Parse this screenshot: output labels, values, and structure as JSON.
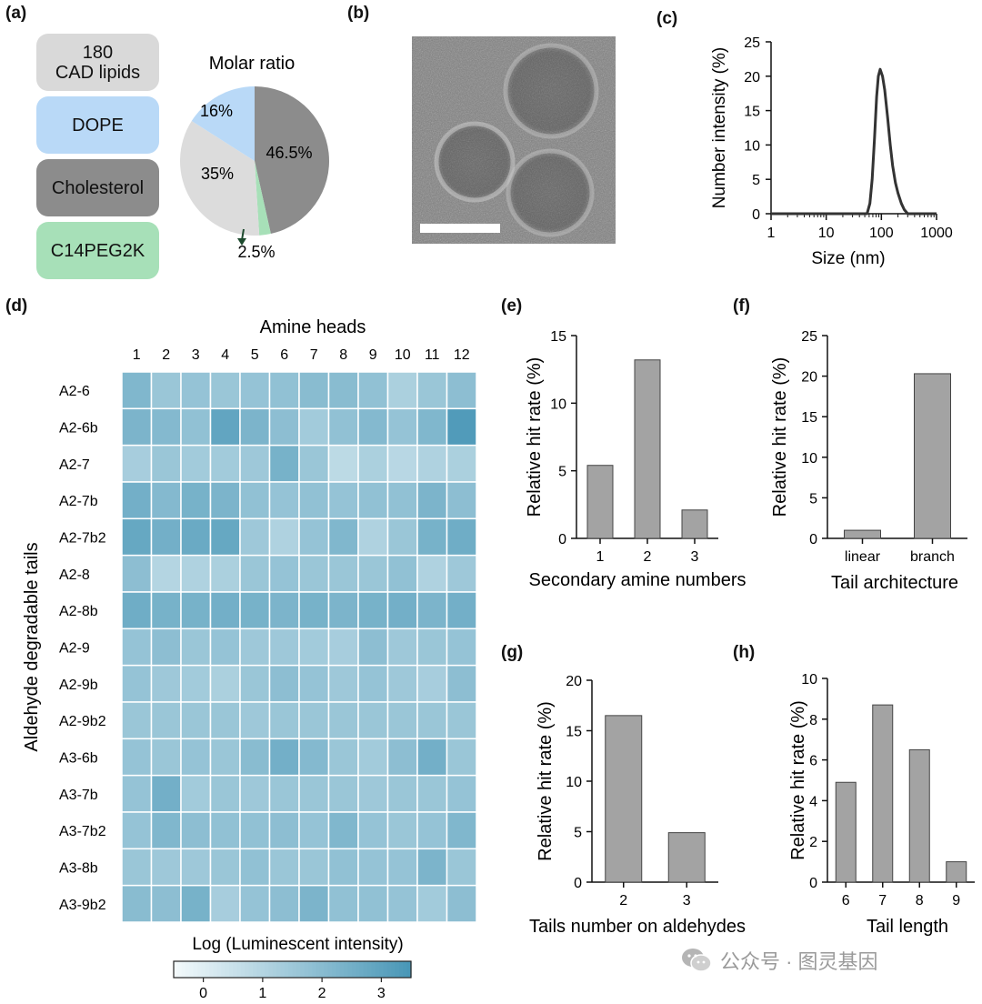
{
  "panels": {
    "a": "(a)",
    "b": "(b)",
    "c": "(c)",
    "d": "(d)",
    "e": "(e)",
    "f": "(f)",
    "g": "(g)",
    "h": "(h)"
  },
  "formulation": {
    "title": "Molar ratio",
    "components": [
      {
        "lines": [
          "180",
          "CAD lipids"
        ],
        "color": "#d9d9d9"
      },
      {
        "lines": [
          "DOPE"
        ],
        "color": "#b9d9f7"
      },
      {
        "lines": [
          "Cholesterol"
        ],
        "color": "#8c8c8c"
      },
      {
        "lines": [
          "C14PEG2K"
        ],
        "color": "#a7e0b8"
      }
    ]
  },
  "watermark": {
    "text": "公众号 · 图灵基因",
    "icon": "wechat-icon"
  },
  "chart_data": [
    {
      "id": "a",
      "type": "pie",
      "title": "Molar ratio",
      "slices": [
        {
          "label": "46.5%",
          "value": 46.5,
          "color": "#8c8c8c"
        },
        {
          "label": "2.5%",
          "value": 2.5,
          "color": "#a7e0b8"
        },
        {
          "label": "35%",
          "value": 35,
          "color": "#dcdcdc"
        },
        {
          "label": "16%",
          "value": 16,
          "color": "#b9d9f7"
        }
      ]
    },
    {
      "id": "c",
      "type": "line",
      "xlabel": "Size (nm)",
      "ylabel": "Number intensity (%)",
      "xscale": "log",
      "xlim": [
        1,
        1000
      ],
      "ylim": [
        0,
        25
      ],
      "xticks": [
        1,
        10,
        100,
        1000
      ],
      "xticklabels": [
        "1",
        "10",
        "100",
        "1000"
      ],
      "yticks": [
        0,
        5,
        10,
        15,
        20,
        25
      ],
      "yticklabels": [
        "0",
        "5",
        "10",
        "15",
        "20",
        "25"
      ],
      "x": [
        1,
        40,
        55,
        62,
        68,
        75,
        82,
        88,
        95,
        105,
        115,
        130,
        145,
        160,
        180,
        200,
        230,
        260,
        300,
        400,
        1000
      ],
      "y": [
        0,
        0,
        0,
        1.5,
        5,
        11,
        17,
        20,
        21,
        20,
        18,
        14,
        10,
        7,
        4.5,
        3,
        1.5,
        0.6,
        0,
        0,
        0
      ]
    },
    {
      "id": "d",
      "type": "heatmap",
      "title": "Amine heads",
      "ylabel": "Aldehyde degradable tails",
      "colorbar_label": "Log (Luminescent intensity)",
      "colorbar_range": [
        -0.5,
        3.5
      ],
      "colorbar_ticks": [
        0,
        1,
        2,
        3
      ],
      "columns": [
        "1",
        "2",
        "3",
        "4",
        "5",
        "6",
        "7",
        "8",
        "9",
        "10",
        "11",
        "12"
      ],
      "rows": [
        "A2-6",
        "A2-6b",
        "A2-7",
        "A2-7b",
        "A2-7b2",
        "A2-8",
        "A2-8b",
        "A2-9",
        "A2-9b",
        "A2-9b2",
        "A3-6b",
        "A3-7b",
        "A3-7b2",
        "A3-8b",
        "A3-9b2"
      ],
      "values": [
        [
          2.2,
          1.6,
          1.7,
          1.6,
          1.7,
          1.8,
          2.0,
          2.0,
          1.8,
          1.2,
          1.6,
          1.9
        ],
        [
          2.3,
          2.1,
          1.8,
          2.9,
          2.3,
          1.9,
          1.4,
          1.8,
          2.1,
          1.7,
          2.2,
          3.3
        ],
        [
          1.3,
          1.6,
          1.4,
          1.4,
          1.5,
          2.4,
          1.6,
          0.8,
          1.2,
          0.9,
          1.1,
          1.2
        ],
        [
          2.5,
          2.1,
          2.4,
          2.3,
          1.8,
          1.7,
          1.8,
          1.7,
          1.8,
          1.8,
          2.3,
          1.9
        ],
        [
          2.8,
          2.5,
          2.7,
          2.8,
          1.5,
          1.1,
          1.7,
          2.2,
          1.1,
          1.6,
          2.4,
          2.6
        ],
        [
          1.9,
          1.0,
          1.1,
          1.2,
          1.6,
          1.7,
          1.6,
          1.6,
          1.6,
          1.8,
          1.1,
          1.5
        ],
        [
          2.6,
          2.4,
          2.4,
          2.5,
          2.4,
          2.3,
          2.4,
          2.3,
          2.4,
          2.5,
          2.3,
          2.5
        ],
        [
          1.7,
          1.9,
          1.6,
          1.7,
          1.5,
          1.5,
          1.4,
          1.3,
          1.9,
          1.5,
          1.6,
          1.7
        ],
        [
          1.7,
          1.5,
          1.4,
          1.2,
          1.6,
          1.9,
          1.7,
          1.5,
          1.7,
          1.5,
          1.3,
          1.9
        ],
        [
          1.6,
          1.6,
          1.6,
          1.6,
          1.5,
          1.6,
          1.6,
          1.6,
          1.6,
          1.6,
          1.6,
          1.6
        ],
        [
          1.7,
          1.6,
          1.7,
          1.6,
          2.0,
          2.5,
          2.1,
          1.6,
          1.4,
          1.9,
          2.5,
          1.6
        ],
        [
          1.7,
          2.5,
          1.4,
          1.6,
          1.5,
          1.6,
          1.6,
          1.6,
          1.5,
          1.6,
          1.6,
          1.7
        ],
        [
          1.7,
          2.2,
          1.9,
          1.8,
          1.8,
          1.9,
          1.7,
          2.2,
          1.7,
          1.6,
          1.7,
          2.2
        ],
        [
          1.6,
          1.5,
          1.5,
          1.6,
          1.8,
          1.6,
          1.6,
          1.8,
          1.7,
          1.7,
          2.3,
          1.6
        ],
        [
          2.0,
          1.9,
          2.4,
          1.3,
          1.7,
          1.9,
          2.3,
          1.8,
          1.8,
          1.7,
          1.4,
          1.9
        ]
      ]
    },
    {
      "id": "e",
      "type": "bar",
      "xlabel": "Secondary amine numbers",
      "ylabel": "Relative hit rate (%)",
      "categories": [
        "1",
        "2",
        "3"
      ],
      "values": [
        5.4,
        13.2,
        2.1
      ],
      "ylim": [
        0,
        15
      ],
      "yticks": [
        0,
        5,
        10,
        15
      ]
    },
    {
      "id": "f",
      "type": "bar",
      "xlabel": "Tail architecture",
      "ylabel": "Relative hit rate (%)",
      "categories": [
        "linear",
        "branch"
      ],
      "values": [
        1.0,
        20.3
      ],
      "ylim": [
        0,
        25
      ],
      "yticks": [
        0,
        5,
        10,
        15,
        20,
        25
      ]
    },
    {
      "id": "g",
      "type": "bar",
      "xlabel": "Tails number on aldehydes",
      "ylabel": "Relative hit rate (%)",
      "categories": [
        "2",
        "3"
      ],
      "values": [
        16.5,
        4.9
      ],
      "ylim": [
        0,
        20
      ],
      "yticks": [
        0,
        5,
        10,
        15,
        20
      ]
    },
    {
      "id": "h",
      "type": "bar",
      "xlabel": "Tail length",
      "ylabel": "Relative hit rate (%)",
      "categories": [
        "6",
        "7",
        "8",
        "9"
      ],
      "values": [
        4.9,
        8.7,
        6.5,
        1.0
      ],
      "ylim": [
        0,
        10
      ],
      "yticks": [
        0,
        2,
        4,
        6,
        8,
        10
      ]
    }
  ]
}
